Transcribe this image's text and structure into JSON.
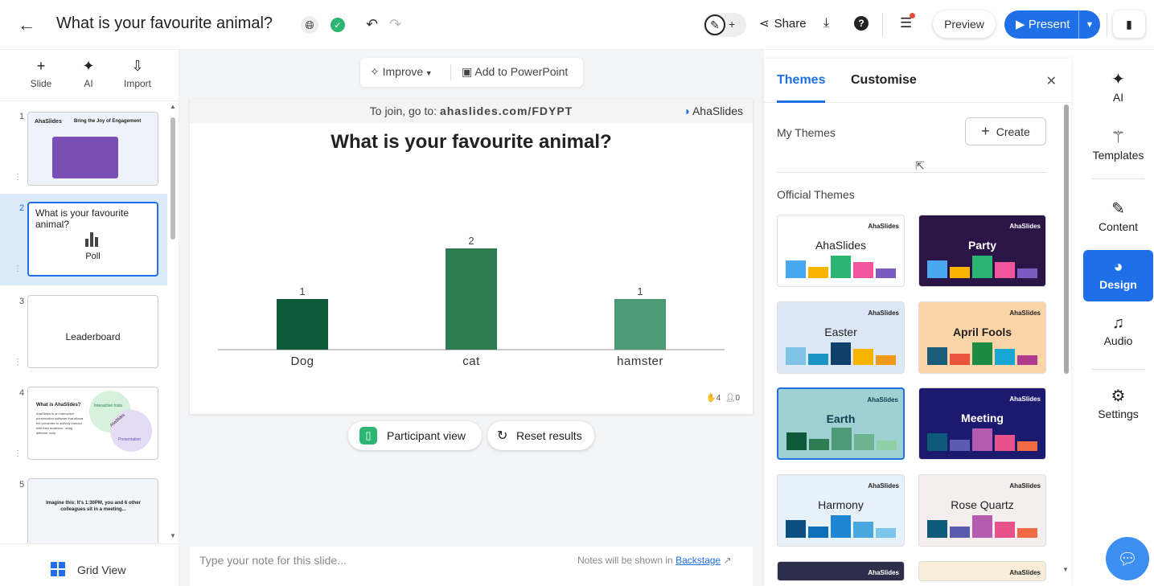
{
  "header": {
    "title": "What is your favourite animal?",
    "share": "Share",
    "preview": "Preview",
    "present": "Present"
  },
  "left": {
    "tools": [
      {
        "label": "Slide",
        "icon": "plus-icon"
      },
      {
        "label": "AI",
        "icon": "sparkle-icon"
      },
      {
        "label": "Import",
        "icon": "import-icon"
      }
    ],
    "slides": [
      {
        "num": "1",
        "title": "Bring the Joy of Engagement",
        "brand": "AhaSlides"
      },
      {
        "num": "2",
        "title": "What is your favourite animal?",
        "type": "Poll"
      },
      {
        "num": "3",
        "title": "Leaderboard"
      },
      {
        "num": "4",
        "title": "What is AhaSlides?",
        "body": "AhaSlides is an interactive presentation software that allows the presenter to actively interact with their audience, using different tools.",
        "tags": [
          "Interactive tools",
          "AhaSlides",
          "Presentation"
        ]
      },
      {
        "num": "5",
        "title": "Imagine this: It's 1:30PM, you and 6 other colleagues sit in a meeting..."
      }
    ],
    "grid_view": "Grid View"
  },
  "editor": {
    "improve": "Improve",
    "add_ppt": "Add to PowerPoint",
    "join_prefix": "To join, go to: ",
    "join_url": "ahaslides.com/FDYPT",
    "brand": "AhaSlides",
    "question": "What is your favourite animal?",
    "footer_hands": "4",
    "footer_people": "0",
    "participant_view": "Participant view",
    "reset_results": "Reset results",
    "notes_placeholder": "Type your note for this slide...",
    "notes_hint": "Notes will be shown in ",
    "notes_link": "Backstage"
  },
  "chart_data": {
    "type": "bar",
    "categories": [
      "Dog",
      "cat",
      "hamster"
    ],
    "values": [
      1,
      2,
      1
    ],
    "colors": [
      "#0f5a3a",
      "#2e7d52",
      "#4e9a76"
    ],
    "ylim": [
      0,
      2
    ]
  },
  "themes_panel": {
    "tabs": [
      "Themes",
      "Customise"
    ],
    "my_themes": "My Themes",
    "create": "Create",
    "official": "Official Themes",
    "themes": [
      {
        "name": "AhaSlides",
        "bg": "#ffffff",
        "fg": "#222222",
        "bars": [
          "#4aa8f0",
          "#f7b500",
          "#2bb673",
          "#f2559b",
          "#7b5bbf"
        ]
      },
      {
        "name": "Party",
        "bg": "#2b1446",
        "fg": "#ffffff",
        "bars": [
          "#4aa8f0",
          "#f7b500",
          "#2bb673",
          "#f2559b",
          "#7b5bbf"
        ]
      },
      {
        "name": "Easter",
        "bg": "#dce8f6",
        "fg": "#222222",
        "bars": [
          "#7fc4e6",
          "#1b96c4",
          "#0f3e6a",
          "#f7b500",
          "#f29a1a"
        ]
      },
      {
        "name": "April Fools",
        "bg": "#fbd4a8",
        "fg": "#222222",
        "bars": [
          "#1b5c7a",
          "#e8553a",
          "#1d8a3f",
          "#1aa6d4",
          "#b23a8e"
        ]
      },
      {
        "name": "Earth",
        "bg": "#9fd1d2",
        "fg": "#0f3d52",
        "bars": [
          "#0f5a3a",
          "#2e7d52",
          "#4e9a76",
          "#6cb48e",
          "#8fd0a8"
        ]
      },
      {
        "name": "Meeting",
        "bg": "#1b1a6e",
        "fg": "#ffffff",
        "bars": [
          "#0e5a7a",
          "#5b5bb0",
          "#b65bb0",
          "#e8528a",
          "#f06b44"
        ]
      },
      {
        "name": "Harmony",
        "bg": "#e6f1fa",
        "fg": "#222222",
        "bars": [
          "#0b4f82",
          "#0c6fb8",
          "#1e86d4",
          "#4aa8e0",
          "#7cc6ec"
        ]
      },
      {
        "name": "Rose Quartz",
        "bg": "#f6eeee",
        "fg": "#222222",
        "bars": [
          "#0e5a7a",
          "#5b5bb0",
          "#b65bb0",
          "#e8528a",
          "#f06b44"
        ]
      }
    ]
  },
  "sidebar": {
    "items": [
      {
        "label": "AI",
        "icon": "sparkle-icon"
      },
      {
        "label": "Templates",
        "icon": "magic-wand-icon"
      },
      {
        "label": "Content",
        "icon": "pencil-icon"
      },
      {
        "label": "Design",
        "icon": "palette-icon"
      },
      {
        "label": "Audio",
        "icon": "music-note-icon"
      },
      {
        "label": "Settings",
        "icon": "gear-icon"
      }
    ]
  }
}
